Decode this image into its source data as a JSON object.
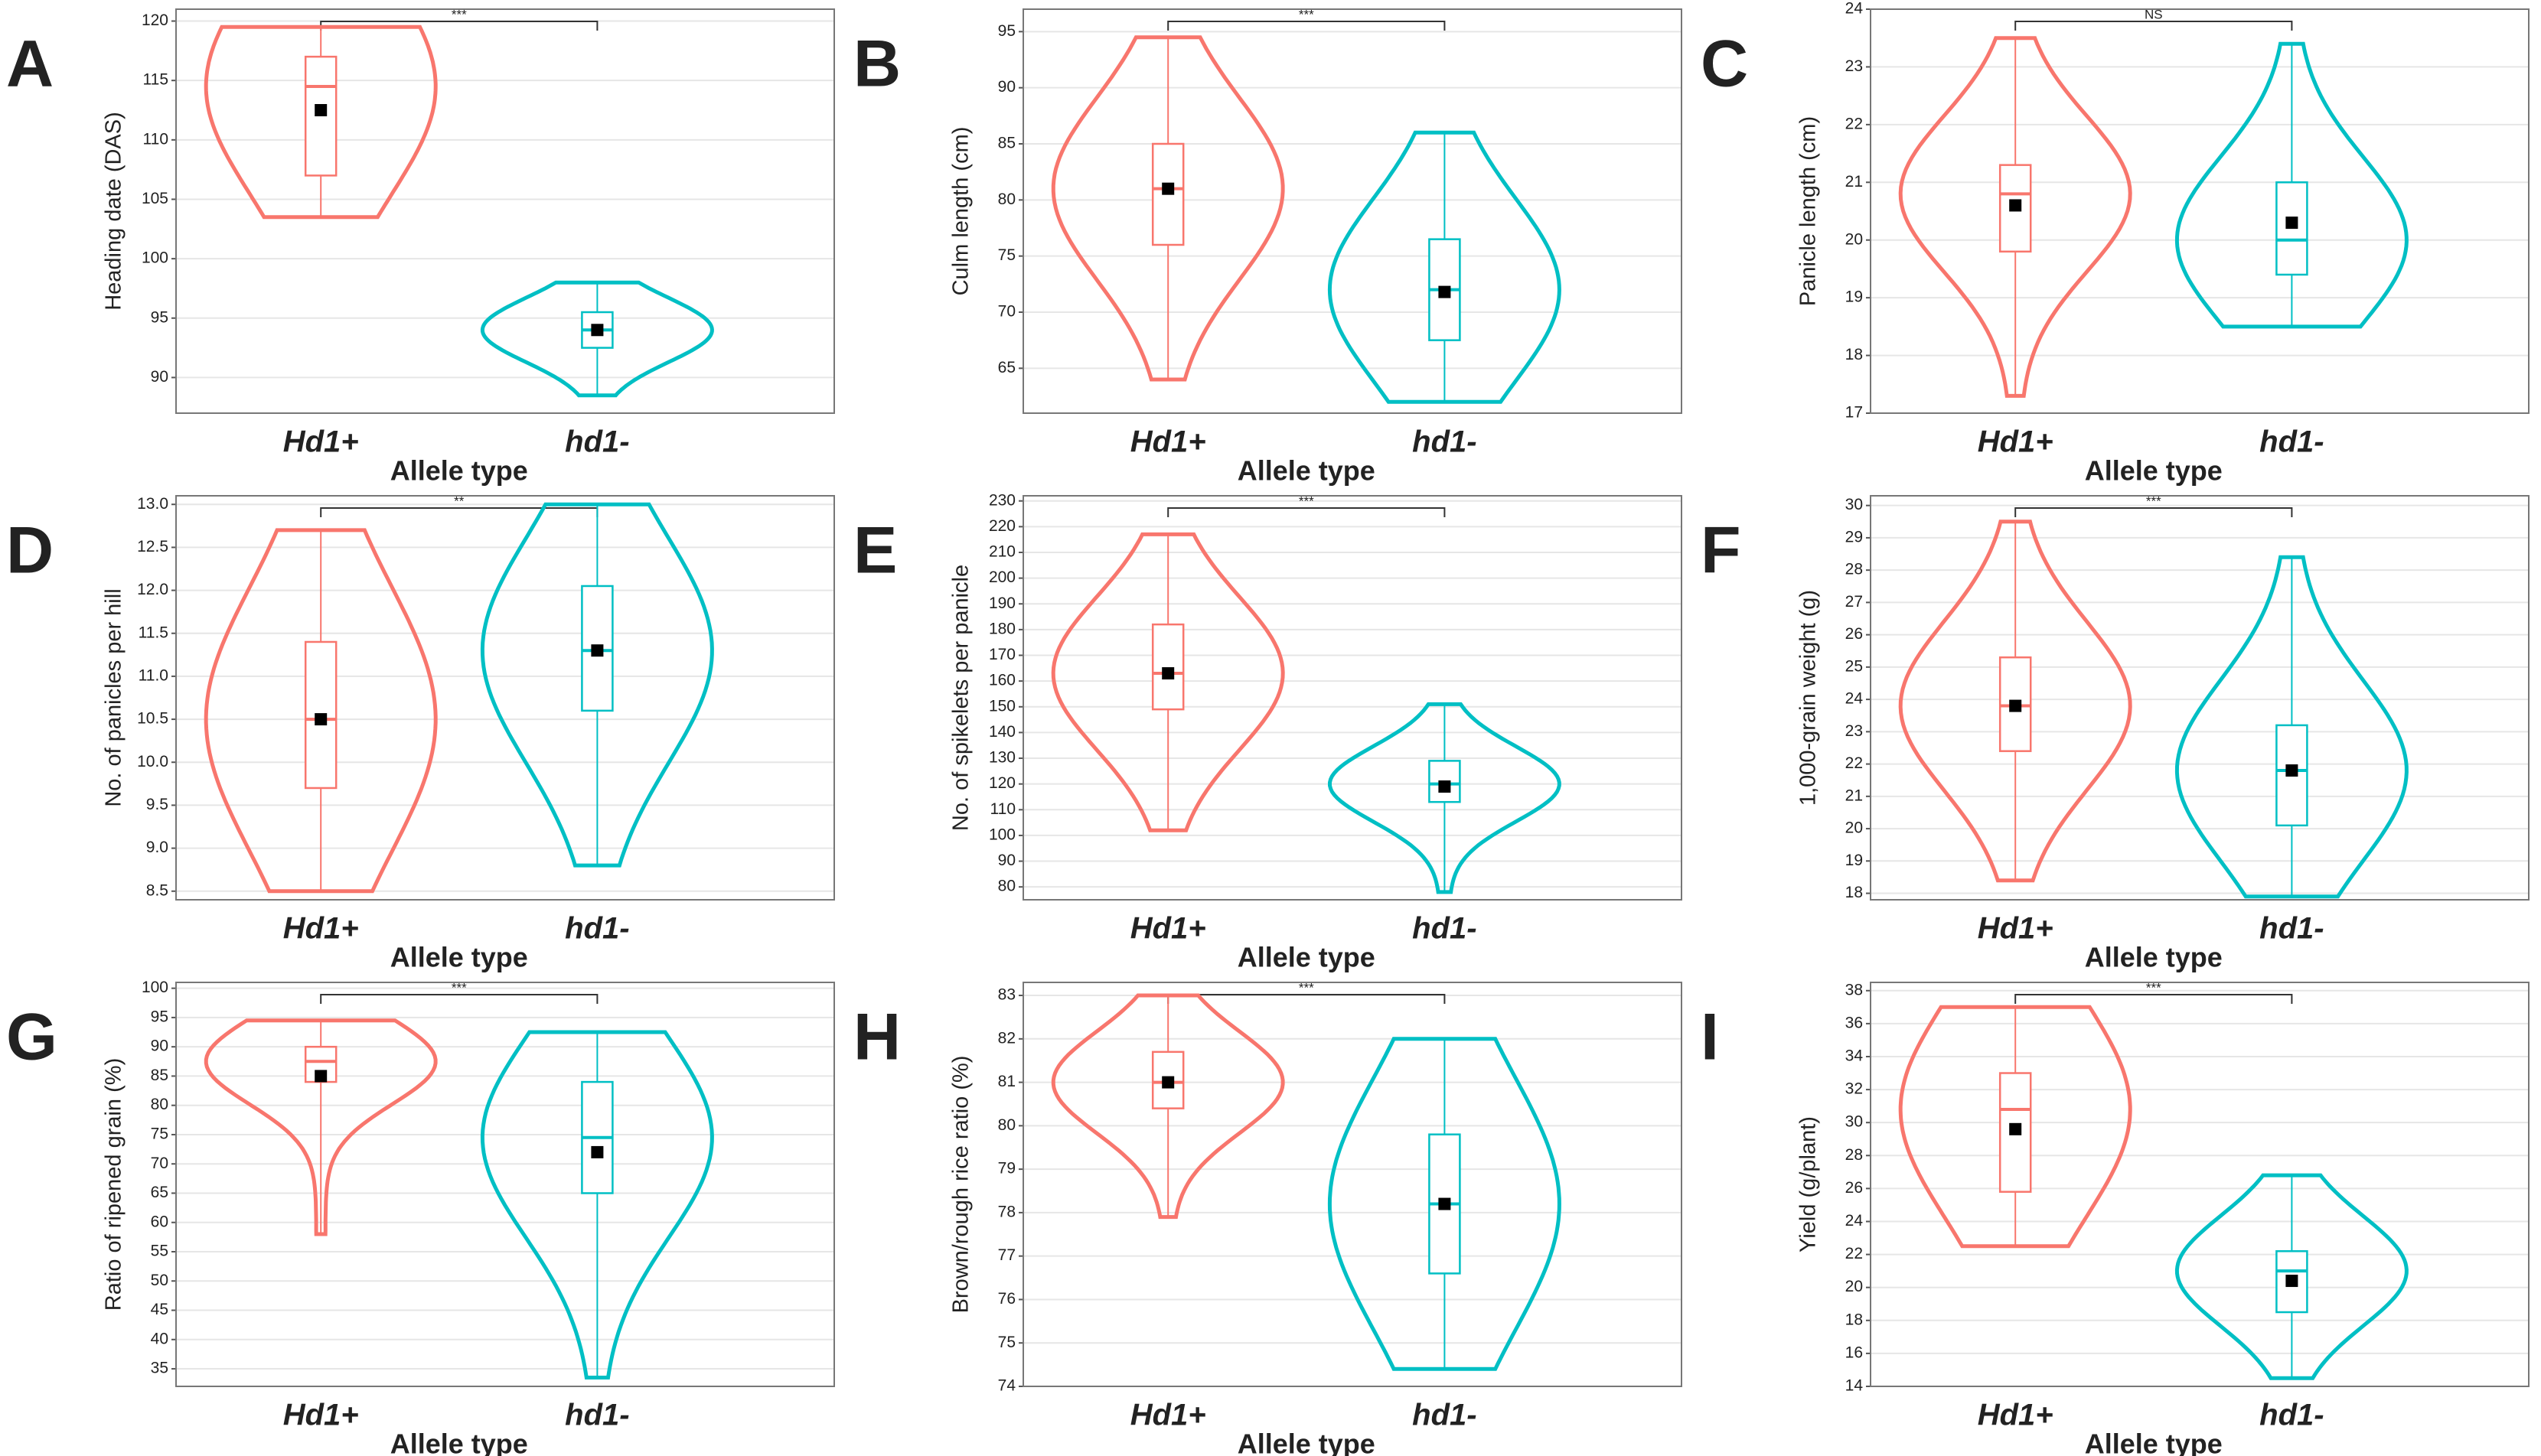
{
  "chart_data": [
    {
      "type": "violin",
      "panel": "A",
      "ylabel": "Heading date (DAS)",
      "xlabel": "Allele type",
      "categories": [
        "Hd1+",
        "hd1-"
      ],
      "significance": "***",
      "ylim": [
        87,
        121
      ],
      "yticks": [
        90,
        95,
        100,
        105,
        110,
        115,
        120
      ],
      "grid": true,
      "series": [
        {
          "color": "#f8766d",
          "min": 103.5,
          "q1": 107,
          "median": 114.5,
          "q3": 117,
          "max": 119.5,
          "mean": 112.5
        },
        {
          "color": "#00bfc4",
          "min": 88.5,
          "q1": 92.5,
          "median": 94,
          "q3": 95.5,
          "max": 98,
          "mean": 94
        }
      ]
    },
    {
      "type": "violin",
      "panel": "B",
      "ylabel": "Culm length (cm)",
      "xlabel": "Allele type",
      "categories": [
        "Hd1+",
        "hd1-"
      ],
      "significance": "***",
      "ylim": [
        61,
        97
      ],
      "yticks": [
        65,
        70,
        75,
        80,
        85,
        90,
        95
      ],
      "grid": true,
      "series": [
        {
          "color": "#f8766d",
          "min": 64,
          "q1": 76,
          "median": 81,
          "q3": 85,
          "max": 94.5,
          "mean": 81
        },
        {
          "color": "#00bfc4",
          "min": 62,
          "q1": 67.5,
          "median": 72,
          "q3": 76.5,
          "max": 86,
          "mean": 71.8
        }
      ]
    },
    {
      "type": "violin",
      "panel": "C",
      "ylabel": "Panicle length (cm)",
      "xlabel": "Allele type",
      "categories": [
        "Hd1+",
        "hd1-"
      ],
      "significance": "NS",
      "ylim": [
        17,
        24
      ],
      "yticks": [
        17,
        18,
        19,
        20,
        21,
        22,
        23,
        24
      ],
      "grid": true,
      "series": [
        {
          "color": "#f8766d",
          "min": 17.3,
          "q1": 19.8,
          "median": 20.8,
          "q3": 21.3,
          "max": 23.5,
          "mean": 20.6
        },
        {
          "color": "#00bfc4",
          "min": 18.5,
          "q1": 19.4,
          "median": 20,
          "q3": 21,
          "max": 23.4,
          "mean": 20.3
        }
      ]
    },
    {
      "type": "violin",
      "panel": "D",
      "ylabel": "No. of panicles per hill",
      "xlabel": "Allele type",
      "categories": [
        "Hd1+",
        "hd1-"
      ],
      "significance": "**",
      "ylim": [
        8.4,
        13.1
      ],
      "yticks": [
        8.5,
        {
          "value": 9,
          "label": "9.0"
        },
        9.5,
        {
          "value": 10,
          "label": "10.0"
        },
        10.5,
        {
          "value": 11,
          "label": "11.0"
        },
        11.5,
        {
          "value": 12,
          "label": "12.0"
        },
        12.5,
        {
          "value": 13,
          "label": "13.0"
        }
      ],
      "grid": true,
      "series": [
        {
          "color": "#f8766d",
          "min": 8.5,
          "q1": 9.7,
          "median": 10.5,
          "q3": 11.4,
          "max": 12.7,
          "mean": 10.5
        },
        {
          "color": "#00bfc4",
          "min": 8.8,
          "q1": 10.6,
          "median": 11.3,
          "q3": 12.05,
          "max": 13,
          "mean": 11.3
        }
      ]
    },
    {
      "type": "violin",
      "panel": "E",
      "ylabel": "No. of spikelets per panicle",
      "xlabel": "Allele type",
      "categories": [
        "Hd1+",
        "hd1-"
      ],
      "significance": "***",
      "ylim": [
        75,
        232
      ],
      "yticks": [
        80,
        90,
        100,
        110,
        120,
        130,
        140,
        150,
        160,
        170,
        180,
        190,
        200,
        210,
        220,
        230
      ],
      "grid": true,
      "series": [
        {
          "color": "#f8766d",
          "min": 102,
          "q1": 149,
          "median": 163,
          "q3": 182,
          "max": 217,
          "mean": 163
        },
        {
          "color": "#00bfc4",
          "min": 78,
          "q1": 113,
          "median": 120,
          "q3": 129,
          "max": 151,
          "mean": 119
        }
      ]
    },
    {
      "type": "violin",
      "panel": "F",
      "ylabel": "1,000-grain weight (g)",
      "xlabel": "Allele type",
      "categories": [
        "Hd1+",
        "hd1-"
      ],
      "significance": "***",
      "ylim": [
        17.8,
        30.3
      ],
      "yticks": [
        18,
        19,
        20,
        21,
        22,
        23,
        24,
        25,
        26,
        27,
        28,
        29,
        30
      ],
      "grid": true,
      "series": [
        {
          "color": "#f8766d",
          "min": 18.4,
          "q1": 22.4,
          "median": 23.8,
          "q3": 25.3,
          "max": 29.5,
          "mean": 23.8
        },
        {
          "color": "#00bfc4",
          "min": 17.9,
          "q1": 20.1,
          "median": 21.8,
          "q3": 23.2,
          "max": 28.4,
          "mean": 21.8
        }
      ]
    },
    {
      "type": "violin",
      "panel": "G",
      "ylabel": "Ratio of ripened grain (%)",
      "xlabel": "Allele type",
      "categories": [
        "Hd1+",
        "hd1-"
      ],
      "significance": "***",
      "ylim": [
        32,
        101
      ],
      "yticks": [
        35,
        40,
        45,
        50,
        55,
        60,
        65,
        70,
        75,
        80,
        85,
        90,
        95,
        100
      ],
      "grid": true,
      "series": [
        {
          "color": "#f8766d",
          "min": 58,
          "q1": 84,
          "median": 87.5,
          "q3": 90,
          "max": 94.5,
          "mean": 85
        },
        {
          "color": "#00bfc4",
          "min": 33.5,
          "q1": 65,
          "median": 74.5,
          "q3": 84,
          "max": 92.5,
          "mean": 72
        }
      ]
    },
    {
      "type": "violin",
      "panel": "H",
      "ylabel": "Brown/rough rice ratio (%)",
      "xlabel": "Allele type",
      "categories": [
        "Hd1+",
        "hd1-"
      ],
      "significance": "***",
      "ylim": [
        74,
        83.3
      ],
      "yticks": [
        74,
        75,
        76,
        77,
        78,
        79,
        80,
        81,
        82,
        83
      ],
      "grid": true,
      "series": [
        {
          "color": "#f8766d",
          "min": 77.9,
          "q1": 80.4,
          "median": 81,
          "q3": 81.7,
          "max": 83,
          "mean": 81
        },
        {
          "color": "#00bfc4",
          "min": 74.4,
          "q1": 76.6,
          "median": 78.2,
          "q3": 79.8,
          "max": 82,
          "mean": 78.2
        }
      ]
    },
    {
      "type": "violin",
      "panel": "I",
      "ylabel": "Yield (g/plant)",
      "xlabel": "Allele type",
      "categories": [
        "Hd1+",
        "hd1-"
      ],
      "significance": "***",
      "ylim": [
        14,
        38.5
      ],
      "yticks": [
        14,
        16,
        18,
        20,
        22,
        24,
        26,
        28,
        30,
        32,
        34,
        36,
        38
      ],
      "grid": true,
      "series": [
        {
          "color": "#f8766d",
          "min": 22.5,
          "q1": 25.8,
          "median": 30.8,
          "q3": 33,
          "max": 37,
          "mean": 29.6
        },
        {
          "color": "#00bfc4",
          "min": 14.5,
          "q1": 18.5,
          "median": 21,
          "q3": 22.2,
          "max": 26.8,
          "mean": 20.4
        }
      ]
    }
  ]
}
